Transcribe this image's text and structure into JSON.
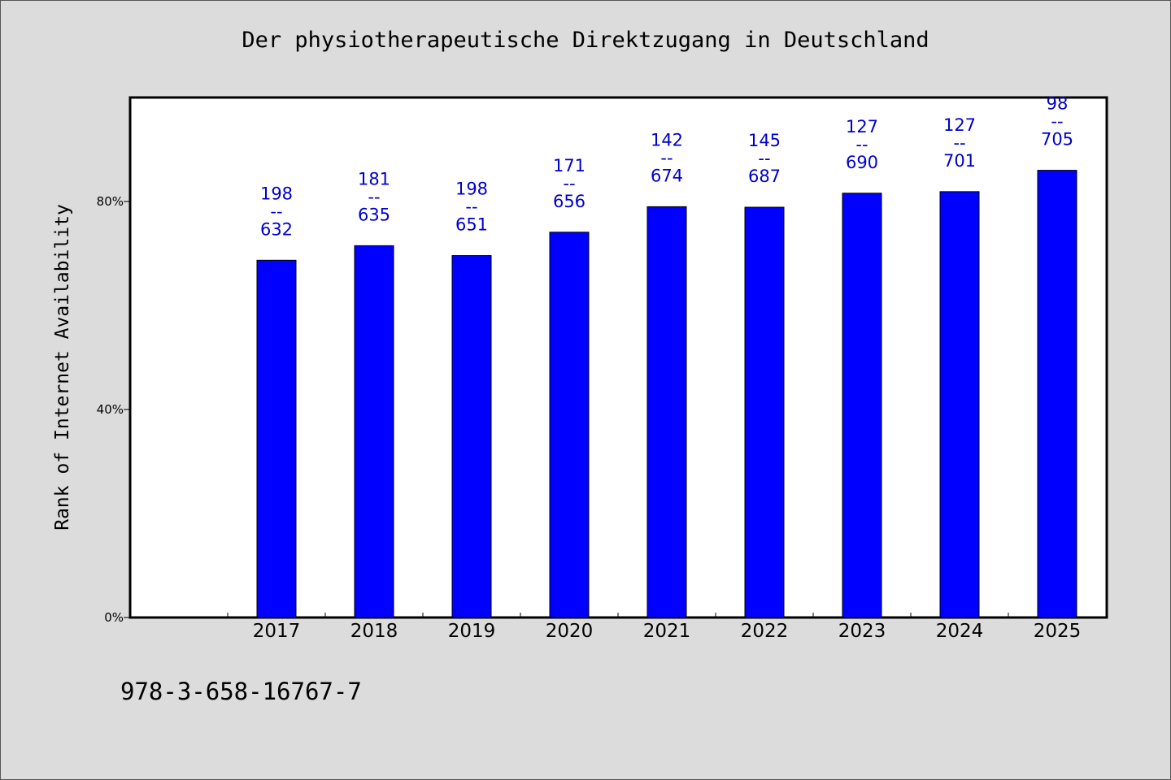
{
  "chart_data": {
    "type": "bar",
    "title": "Der physiotherapeutische Direktzugang in Deutschland",
    "xlabel": "",
    "ylabel": "Rank of Internet Availability",
    "categories": [
      "2017",
      "2018",
      "2019",
      "2020",
      "2021",
      "2022",
      "2023",
      "2024",
      "2025"
    ],
    "values": [
      68.7,
      71.5,
      69.6,
      74.1,
      79.0,
      78.9,
      81.6,
      81.9,
      86.0
    ],
    "bar_labels": [
      {
        "top": "198",
        "sep": "--",
        "bottom": "632"
      },
      {
        "top": "181",
        "sep": "--",
        "bottom": "635"
      },
      {
        "top": "198",
        "sep": "--",
        "bottom": "651"
      },
      {
        "top": "171",
        "sep": "--",
        "bottom": "656"
      },
      {
        "top": "142",
        "sep": "--",
        "bottom": "674"
      },
      {
        "top": "145",
        "sep": "--",
        "bottom": "687"
      },
      {
        "top": "127",
        "sep": "--",
        "bottom": "690"
      },
      {
        "top": "127",
        "sep": "--",
        "bottom": "701"
      },
      {
        "top": "98",
        "sep": "--",
        "bottom": "705"
      }
    ],
    "ylim": [
      0,
      100
    ],
    "yticks": [
      0,
      40,
      80
    ],
    "ytick_labels": [
      "0%",
      "40%",
      "80%"
    ],
    "grid": false,
    "legend": "none",
    "colors": {
      "bar": "#0000ff",
      "bar_label": "#0000cc",
      "plot_bg": "#ffffff",
      "page_bg": "#dcdcdc"
    }
  },
  "footer": {
    "code": "978-3-658-16767-7"
  }
}
